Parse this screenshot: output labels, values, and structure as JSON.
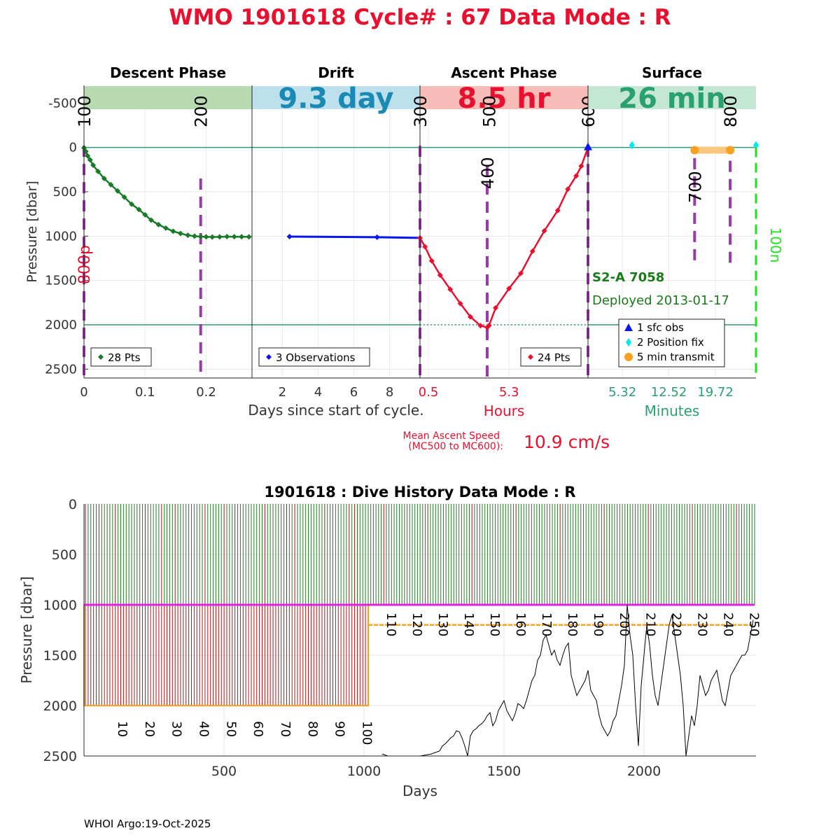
{
  "header": {
    "title": "WMO 1901618   Cycle# : 67   Data Mode : R",
    "title_color": "#e8102e"
  },
  "float_info": {
    "sensor": "S2-A 7058",
    "deployed": "Deployed 2013-01-17",
    "color": "#1a7a1a"
  },
  "ascent_speed": {
    "label_line1": "Mean Ascent Speed",
    "label_line2": "(MC500 to MC600):",
    "value": "10.9 cm/s",
    "color": "#e8102e"
  },
  "footer": {
    "text": "WHOI Argo:19-Oct-2025"
  },
  "chart_data": [
    {
      "type": "line",
      "ylabel": "Pressure [dbar]",
      "xlabel": "Days since start of cycle.",
      "ylim": [
        -700,
        2600
      ],
      "y_reversed": true,
      "yticks": [
        -500,
        0,
        500,
        1000,
        1500,
        2000,
        2500
      ],
      "reference_lines": [
        0,
        2000
      ],
      "grid": true,
      "panels": [
        {
          "id": "descent",
          "title": "Descent Phase",
          "bar_label": "",
          "bar_color": "#b8dab0",
          "label_color": "#000000",
          "xlim": [
            0,
            0.275
          ],
          "xticks": [
            0,
            0.1,
            0.2
          ],
          "tick_color": "#333333",
          "legend": "28 Pts",
          "series_color": "#1a7a2a",
          "series": {
            "x": [
              0,
              0.003,
              0.006,
              0.01,
              0.015,
              0.023,
              0.033,
              0.044,
              0.055,
              0.066,
              0.078,
              0.09,
              0.1,
              0.11,
              0.122,
              0.134,
              0.146,
              0.158,
              0.17,
              0.181,
              0.191,
              0.2,
              0.21,
              0.222,
              0.234,
              0.246,
              0.258,
              0.27
            ],
            "y": [
              5,
              45,
              95,
              140,
              200,
              270,
              350,
              420,
              490,
              560,
              640,
              700,
              760,
              820,
              870,
              910,
              945,
              970,
              990,
              1000,
              1005,
              1008,
              1010,
              1008,
              1005,
              1006,
              1007,
              1008
            ]
          },
          "markers": [
            {
              "label": "100",
              "x": 0,
              "color": "#000000"
            },
            {
              "label": "200",
              "x": 0.191,
              "color": "#000000"
            }
          ],
          "vlines": [
            {
              "x": 0,
              "y0": -20,
              "y1": 2600
            },
            {
              "x": 0.191,
              "y0": 350,
              "y1": 2600
            }
          ],
          "side_label": {
            "text": "800p",
            "color": "#e8102e"
          }
        },
        {
          "id": "drift",
          "title": "Drift",
          "bar_label": "9.3 day",
          "bar_color": "#bde0ec",
          "label_color": "#1a8ab4",
          "xlim": [
            0.3,
            9.7
          ],
          "xticks": [
            2,
            4,
            6,
            8
          ],
          "tick_color": "#333333",
          "legend": "3 Observations",
          "series_color": "#0a16f0",
          "series": {
            "x": [
              2.4,
              7.3,
              9.7
            ],
            "y": [
              1005,
              1012,
              1020
            ]
          },
          "sparse_markers": [
            0,
            1
          ],
          "markers": [],
          "vlines": []
        },
        {
          "id": "ascent",
          "title": "Ascent Phase",
          "bar_label": "8.5 hr",
          "bar_color": "#f8bcb8",
          "label_color": "#e8102e",
          "xlim": [
            0,
            10
          ],
          "xticks": [
            0.5,
            5.3
          ],
          "tick_color": "#e8102e",
          "xlabel": "Hours",
          "legend": "24 Pts",
          "series_color": "#e8102e",
          "series": {
            "x": [
              0,
              0.3,
              0.7,
              1.2,
              1.8,
              2.4,
              3.0,
              3.6,
              4.0,
              4.1,
              4.5,
              5.3,
              6.0,
              6.7,
              7.4,
              8.2,
              8.8,
              9.3,
              9.6,
              10.0
            ],
            "y": [
              1020,
              1120,
              1280,
              1440,
              1600,
              1760,
              1910,
              2010,
              2030,
              2010,
              1810,
              1590,
              1420,
              1170,
              940,
              710,
              470,
              320,
              210,
              0
            ]
          },
          "markers": [
            {
              "label": "300",
              "x": 0,
              "color": "#000000"
            },
            {
              "label": "400",
              "x": 4.0,
              "color": "#000000"
            },
            {
              "label": "500",
              "x": 4.1,
              "color": "#000000"
            },
            {
              "label": "600",
              "x": 10.0,
              "color": "#000000"
            }
          ],
          "vlines": [
            {
              "x": 0,
              "y0": -20,
              "y1": 2600
            },
            {
              "x": 4.0,
              "y0": 200,
              "y1": 2600
            },
            {
              "x": 10.0,
              "y0": -20,
              "y1": 2600
            }
          ]
        },
        {
          "id": "surface",
          "title": "Surface",
          "bar_label": "26 min",
          "bar_color": "#c4e6d4",
          "label_color": "#2aa070",
          "xlim": [
            0,
            26
          ],
          "xticks": [
            5.32,
            12.52,
            19.72
          ],
          "tick_color": "#2aa070",
          "xlabel": "Minutes",
          "legend_items": [
            {
              "label": "1 sfc obs",
              "color": "#0a16f0",
              "shape": "triangle"
            },
            {
              "label": "2 Position fix",
              "color": "#00e8f0",
              "shape": "diamond"
            },
            {
              "label": "5 min transmit",
              "color": "#f8a020",
              "shape": "circle"
            }
          ],
          "sfc_obs": {
            "x": 0,
            "y": 0
          },
          "position_fix": [
            {
              "x": 6.8,
              "y": -25
            },
            {
              "x": 26,
              "y": -25
            }
          ],
          "transmit": {
            "x0": 16.5,
            "x1": 22.0,
            "y": 30
          },
          "markers": [
            {
              "label": "700",
              "x": 16.5,
              "color": "#000000"
            },
            {
              "label": "800",
              "x": 22.0,
              "color": "#000000"
            }
          ],
          "vlines": [
            {
              "x": 16.5,
              "y0": 120,
              "y1": 1300
            },
            {
              "x": 22.0,
              "y0": 150,
              "y1": 1300
            }
          ],
          "green_line": {
            "x": 26,
            "label": "100n",
            "color": "#20e020"
          }
        }
      ]
    },
    {
      "type": "line",
      "title": "1901618 : Dive History      Data Mode : R",
      "xlabel": "Days",
      "ylabel": "Pressure [dbar]",
      "xlim": [
        0,
        2400
      ],
      "ylim": [
        0,
        2500
      ],
      "y_reversed": true,
      "xticks": [
        500,
        1000,
        1500,
        2000
      ],
      "yticks": [
        0,
        500,
        1000,
        1500,
        2000,
        2500
      ],
      "grid": true,
      "cycle_labels": [
        "10",
        "20",
        "30",
        "40",
        "50",
        "60",
        "70",
        "80",
        "90",
        "100",
        "110",
        "120",
        "130",
        "140",
        "150",
        "160",
        "170",
        "180",
        "190",
        "200",
        "210",
        "220",
        "230",
        "240",
        "250"
      ],
      "deep_phase": {
        "x_end": 1015,
        "profile_depth": 2000
      },
      "shallow_phase": {
        "profile_depth": 1200
      },
      "park_depth": 1000,
      "series": [
        {
          "name": "",
          "color": "#000000",
          "x": [
            1065,
            1085,
            1100,
            1150,
            1200,
            1240,
            1260,
            1270,
            1280,
            1290,
            1300,
            1310,
            1320,
            1330,
            1340,
            1350,
            1360,
            1370,
            1380,
            1390,
            1400,
            1410,
            1420,
            1430,
            1440,
            1450,
            1460,
            1470,
            1480,
            1490,
            1500,
            1510,
            1520,
            1530,
            1540,
            1550,
            1560,
            1570,
            1580,
            1590,
            1600,
            1610,
            1620,
            1630,
            1640,
            1650,
            1660,
            1670,
            1680,
            1690,
            1700,
            1710,
            1720,
            1730,
            1740,
            1750,
            1760,
            1770,
            1780,
            1790,
            1800,
            1810,
            1820,
            1830,
            1840,
            1850,
            1860,
            1870,
            1880,
            1890,
            1900,
            1910,
            1920,
            1930,
            1940,
            1950,
            1960,
            1970,
            1980,
            1990,
            2000,
            2010,
            2020,
            2030,
            2040,
            2050,
            2060,
            2070,
            2080,
            2090,
            2100,
            2110,
            2120,
            2130,
            2140,
            2150,
            2160,
            2170,
            2180,
            2190,
            2200,
            2210,
            2220,
            2230,
            2240,
            2250,
            2260,
            2270,
            2280,
            2290,
            2300,
            2310,
            2320,
            2330,
            2340,
            2350,
            2360,
            2370,
            2380,
            2390
          ],
          "y": [
            2480,
            2500,
            2520,
            2510,
            2500,
            2480,
            2460,
            2450,
            2400,
            2380,
            2350,
            2320,
            2300,
            2250,
            2260,
            2320,
            2400,
            2500,
            2300,
            2250,
            2230,
            2200,
            2180,
            2150,
            2100,
            2070,
            2200,
            2150,
            2050,
            2000,
            1950,
            2050,
            2100,
            2150,
            2080,
            1980,
            2000,
            2030,
            1950,
            1850,
            1750,
            1700,
            1550,
            1500,
            1350,
            1300,
            1400,
            1500,
            1450,
            1550,
            1600,
            1500,
            1420,
            1380,
            1700,
            1800,
            1900,
            1850,
            1800,
            1750,
            1650,
            1850,
            1900,
            1950,
            2100,
            2200,
            2250,
            2300,
            2250,
            2150,
            2100,
            1950,
            1800,
            1600,
            1000,
            1300,
            1500,
            2000,
            2400,
            1800,
            1500,
            1200,
            1400,
            1700,
            1900,
            2000,
            1800,
            1600,
            1400,
            1200,
            1100,
            1300,
            1500,
            1700,
            2000,
            2500,
            2300,
            2100,
            2200,
            2000,
            1700,
            1800,
            1900,
            1850,
            1750,
            1700,
            1650,
            1800,
            1950,
            2000,
            1850,
            1700,
            1650,
            1600,
            1550,
            1500,
            1500,
            1450,
            1300,
            1150
          ]
        }
      ]
    }
  ]
}
